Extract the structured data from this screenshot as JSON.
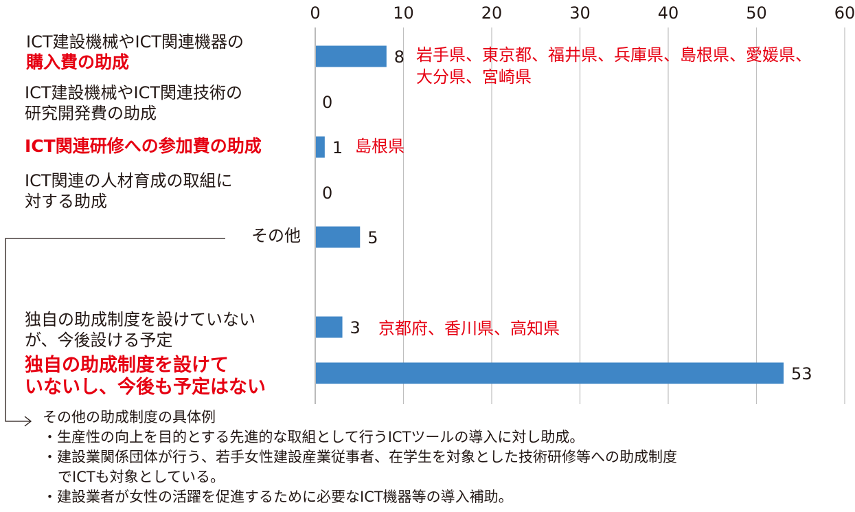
{
  "chart_data": {
    "type": "bar",
    "orientation": "horizontal",
    "xlim": [
      0,
      60
    ],
    "xticks": [
      0,
      10,
      20,
      30,
      40,
      50,
      60
    ],
    "grid": true,
    "bar_color": "#3f86c6",
    "highlight_color": "#e60012",
    "categories": [
      {
        "lines": [
          "ICT建設機械やICT関連機器の",
          "購入費の助成"
        ],
        "highlight_lines": [
          1
        ],
        "value": 8,
        "prefectures": [
          "岩手県、東京都、福井県、兵庫県、島根県、愛媛県、",
          "大分県、宮崎県"
        ]
      },
      {
        "lines": [
          "ICT建設機械やICT関連技術の",
          "研究開発費の助成"
        ],
        "highlight_lines": [],
        "value": 0,
        "prefectures": []
      },
      {
        "lines": [
          "ICT関連研修への参加費の助成"
        ],
        "highlight_lines": [
          0
        ],
        "value": 1,
        "prefectures": [
          "島根県"
        ]
      },
      {
        "lines": [
          "ICT関連の人材育成の取組に",
          "対する助成"
        ],
        "highlight_lines": [],
        "value": 0,
        "prefectures": []
      },
      {
        "lines": [
          "その他"
        ],
        "highlight_lines": [],
        "value": 5,
        "prefectures": []
      },
      {
        "lines": [
          "独自の助成制度を設けていない",
          "が、今後設ける予定"
        ],
        "highlight_lines": [],
        "value": 3,
        "prefectures": [
          "京都府、香川県、高知県"
        ]
      },
      {
        "lines": [
          "独自の助成制度を設けて",
          "いないし、今後も予定はない"
        ],
        "highlight_lines": [
          0,
          1
        ],
        "value": 53,
        "prefectures": []
      }
    ]
  },
  "notes": {
    "title": "その他の助成制度の具体例",
    "items": [
      "・生産性の向上を目的とする先進的な取組として行うICTツールの導入に対し助成。",
      "・建設業関係団体が行う、若手女性建設産業従事者、在学生を対象とした技術研修等への助成制度",
      "でICTも対象としている。",
      "・建設業者が女性の活躍を促進するために必要なICT機器等の導入補助。"
    ]
  }
}
